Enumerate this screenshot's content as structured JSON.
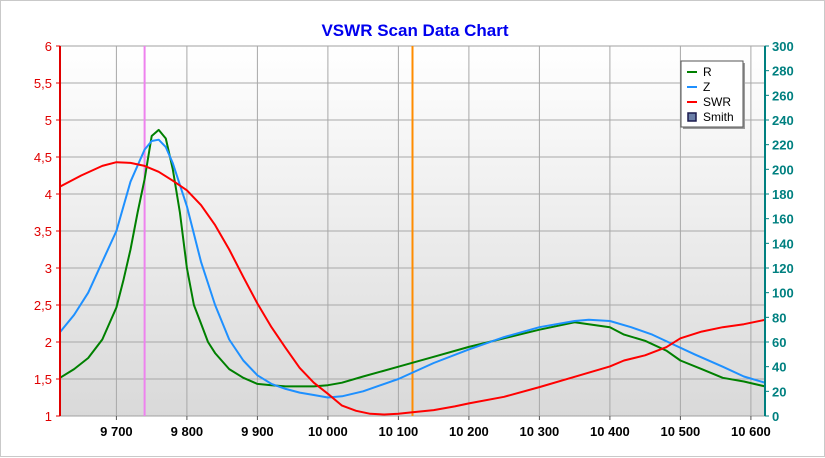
{
  "chart_data": {
    "type": "line",
    "title": "VSWR Scan Data Chart",
    "xlabel": "",
    "ylabel_left": "",
    "ylabel_right": "",
    "xlim": [
      9620,
      10620
    ],
    "ylim_left": [
      1,
      6
    ],
    "ylim_right": [
      0,
      300
    ],
    "x_ticks": [
      9700,
      9800,
      9900,
      10000,
      10100,
      10200,
      10300,
      10400,
      10500,
      10600
    ],
    "x_tick_labels": [
      "9 700",
      "9 800",
      "9 900",
      "10 000",
      "10 100",
      "10 200",
      "10 300",
      "10 400",
      "10 500",
      "10 600"
    ],
    "y_left_ticks": [
      1,
      1.5,
      2,
      2.5,
      3,
      3.5,
      4,
      4.5,
      5,
      5.5,
      6
    ],
    "y_left_tick_labels": [
      "1",
      "1,5",
      "2",
      "2,5",
      "3",
      "3,5",
      "4",
      "4,5",
      "5",
      "5,5",
      "6"
    ],
    "y_right_ticks": [
      0,
      20,
      40,
      60,
      80,
      100,
      120,
      140,
      160,
      180,
      200,
      220,
      240,
      260,
      280,
      300
    ],
    "y_right_tick_labels": [
      "0",
      "20",
      "40",
      "60",
      "80",
      "100",
      "120",
      "140",
      "160",
      "180",
      "200",
      "220",
      "240",
      "260",
      "280",
      "300"
    ],
    "grid": true,
    "legend_position": "top-right",
    "markers": [
      {
        "x": 9740,
        "color": "#ee82ee"
      },
      {
        "x": 10120,
        "color": "#ff8c00"
      }
    ],
    "series": [
      {
        "name": "R",
        "axis": "right",
        "color": "#008000",
        "x": [
          9620,
          9640,
          9660,
          9680,
          9700,
          9710,
          9720,
          9730,
          9740,
          9750,
          9760,
          9770,
          9780,
          9790,
          9800,
          9810,
          9820,
          9830,
          9840,
          9860,
          9880,
          9900,
          9920,
          9940,
          9960,
          9980,
          10000,
          10020,
          10050,
          10100,
          10150,
          10200,
          10250,
          10300,
          10350,
          10400,
          10420,
          10450,
          10480,
          10500,
          10530,
          10560,
          10590,
          10620
        ],
        "y": [
          31,
          38,
          47,
          62,
          88,
          110,
          135,
          165,
          192,
          227,
          232,
          225,
          200,
          165,
          120,
          90,
          75,
          60,
          51,
          38,
          31,
          26,
          25,
          24,
          24,
          24,
          25,
          27,
          32,
          40,
          48,
          56,
          63,
          70,
          76,
          72,
          66,
          61,
          53,
          45,
          38,
          31,
          28,
          24
        ]
      },
      {
        "name": "Z",
        "axis": "right",
        "color": "#1e90ff",
        "x": [
          9620,
          9640,
          9660,
          9680,
          9700,
          9720,
          9740,
          9750,
          9760,
          9770,
          9780,
          9800,
          9820,
          9840,
          9860,
          9880,
          9900,
          9920,
          9940,
          9960,
          9980,
          10000,
          10020,
          10050,
          10100,
          10150,
          10200,
          10250,
          10300,
          10350,
          10370,
          10400,
          10430,
          10460,
          10490,
          10520,
          10560,
          10590,
          10620
        ],
        "y": [
          68,
          82,
          100,
          125,
          150,
          190,
          216,
          223,
          224,
          218,
          205,
          170,
          125,
          90,
          62,
          45,
          33,
          26,
          22,
          19,
          17,
          15,
          16,
          20,
          30,
          43,
          54,
          64,
          72,
          77,
          78,
          77,
          72,
          66,
          58,
          50,
          40,
          32,
          27
        ]
      },
      {
        "name": "SWR",
        "axis": "left",
        "color": "#ff0000",
        "x": [
          9620,
          9650,
          9680,
          9700,
          9720,
          9740,
          9760,
          9780,
          9800,
          9820,
          9840,
          9860,
          9880,
          9900,
          9920,
          9940,
          9960,
          9980,
          10000,
          10020,
          10040,
          10060,
          10080,
          10100,
          10120,
          10150,
          10180,
          10200,
          10250,
          10300,
          10350,
          10400,
          10420,
          10450,
          10480,
          10500,
          10530,
          10560,
          10590,
          10620
        ],
        "y": [
          4.1,
          4.25,
          4.38,
          4.43,
          4.42,
          4.38,
          4.3,
          4.18,
          4.05,
          3.85,
          3.58,
          3.25,
          2.88,
          2.52,
          2.2,
          1.92,
          1.65,
          1.45,
          1.3,
          1.14,
          1.07,
          1.03,
          1.02,
          1.03,
          1.05,
          1.08,
          1.13,
          1.17,
          1.26,
          1.39,
          1.53,
          1.67,
          1.75,
          1.82,
          1.93,
          2.05,
          2.14,
          2.2,
          2.24,
          2.3
        ]
      }
    ]
  },
  "legend": {
    "items": [
      {
        "label": "R",
        "color": "#008000",
        "kind": "line"
      },
      {
        "label": "Z",
        "color": "#1e90ff",
        "kind": "line"
      },
      {
        "label": "SWR",
        "color": "#ff0000",
        "kind": "line"
      },
      {
        "label": "Smith",
        "color": "#1a1a4d",
        "kind": "box"
      }
    ]
  }
}
